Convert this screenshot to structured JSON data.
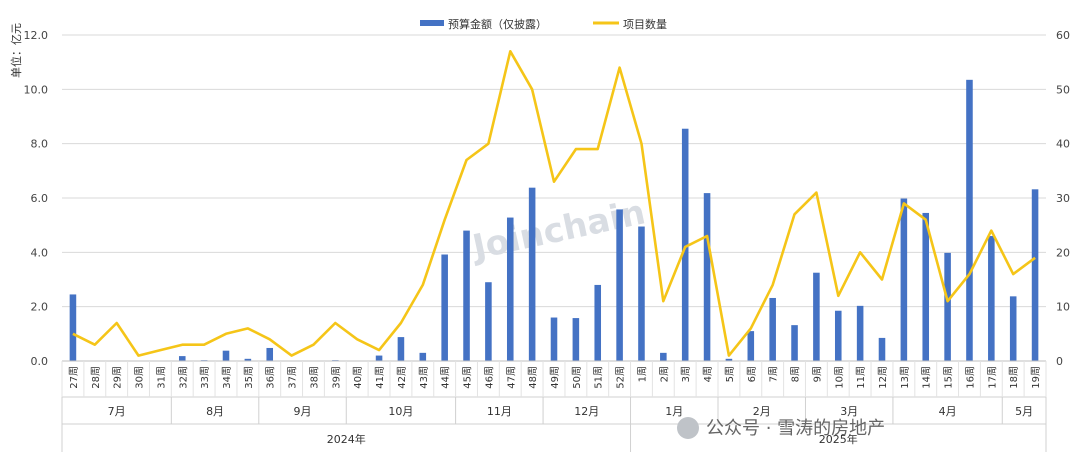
{
  "chart_data": {
    "type": "bar+line",
    "unit_label": "单位：亿元",
    "legend": [
      "预算金额（仅披露）",
      "项目数量"
    ],
    "colors": {
      "bar": "#4472c4",
      "line": "#f5c518",
      "grid": "#d9d9d9"
    },
    "y_left": {
      "min": 0,
      "max": 12,
      "step": 2,
      "ticks": [
        "0.0",
        "2.0",
        "4.0",
        "6.0",
        "8.0",
        "10.0",
        "12.0"
      ]
    },
    "y_right": {
      "min": 0,
      "max": 60,
      "step": 10,
      "ticks": [
        "0",
        "10",
        "20",
        "30",
        "40",
        "50",
        "60"
      ]
    },
    "categories": [
      "27周",
      "28周",
      "29周",
      "30周",
      "31周",
      "32周",
      "33周",
      "34周",
      "35周",
      "36周",
      "37周",
      "38周",
      "39周",
      "40周",
      "41周",
      "42周",
      "43周",
      "44周",
      "45周",
      "46周",
      "47周",
      "48周",
      "49周",
      "50周",
      "51周",
      "52周",
      "1周",
      "2周",
      "3周",
      "4周",
      "5周",
      "6周",
      "7周",
      "8周",
      "9周",
      "10周",
      "11周",
      "12周",
      "13周",
      "14周",
      "15周",
      "16周",
      "17周",
      "18周",
      "19周"
    ],
    "series": [
      {
        "name": "预算金额（仅披露）",
        "axis": "left",
        "kind": "bar",
        "values": [
          2.45,
          0,
          0,
          0,
          0,
          0.18,
          0.03,
          0.38,
          0.08,
          0.48,
          0,
          0,
          0.03,
          0,
          0.2,
          0.88,
          0.3,
          3.92,
          4.8,
          2.9,
          5.28,
          6.38,
          1.6,
          1.58,
          2.8,
          5.58,
          4.95,
          0.3,
          8.55,
          6.18,
          0.08,
          1.1,
          2.32,
          1.32,
          3.25,
          1.85,
          2.03,
          0.85,
          5.98,
          5.45,
          3.98,
          10.35,
          4.6,
          2.38,
          6.32
        ]
      },
      {
        "name": "项目数量",
        "axis": "right",
        "kind": "line",
        "values": [
          5,
          3,
          7,
          1,
          2,
          3,
          3,
          5,
          6,
          4,
          1,
          3,
          7,
          4,
          2,
          7,
          14,
          26,
          37,
          40,
          57,
          50,
          33,
          39,
          39,
          54,
          40,
          11,
          21,
          23,
          1,
          6,
          14,
          27,
          31,
          12,
          20,
          15,
          29,
          26,
          11,
          16,
          24,
          16,
          19
        ]
      }
    ],
    "months": [
      {
        "label": "7月",
        "start": 0,
        "end": 4
      },
      {
        "label": "8月",
        "start": 5,
        "end": 8
      },
      {
        "label": "9月",
        "start": 9,
        "end": 12
      },
      {
        "label": "10月",
        "start": 13,
        "end": 17
      },
      {
        "label": "11月",
        "start": 18,
        "end": 21
      },
      {
        "label": "12月",
        "start": 22,
        "end": 25
      },
      {
        "label": "1月",
        "start": 26,
        "end": 29
      },
      {
        "label": "2月",
        "start": 30,
        "end": 33
      },
      {
        "label": "3月",
        "start": 34,
        "end": 37
      },
      {
        "label": "4月",
        "start": 38,
        "end": 42
      },
      {
        "label": "5月",
        "start": 43,
        "end": 44
      }
    ],
    "years": [
      {
        "label": "2024年",
        "start": 0,
        "end": 25
      },
      {
        "label": "2025年",
        "start": 26,
        "end": 44
      }
    ],
    "watermark": "Joinchain",
    "footer_text": "公众号 · 雪涛的房地产"
  }
}
